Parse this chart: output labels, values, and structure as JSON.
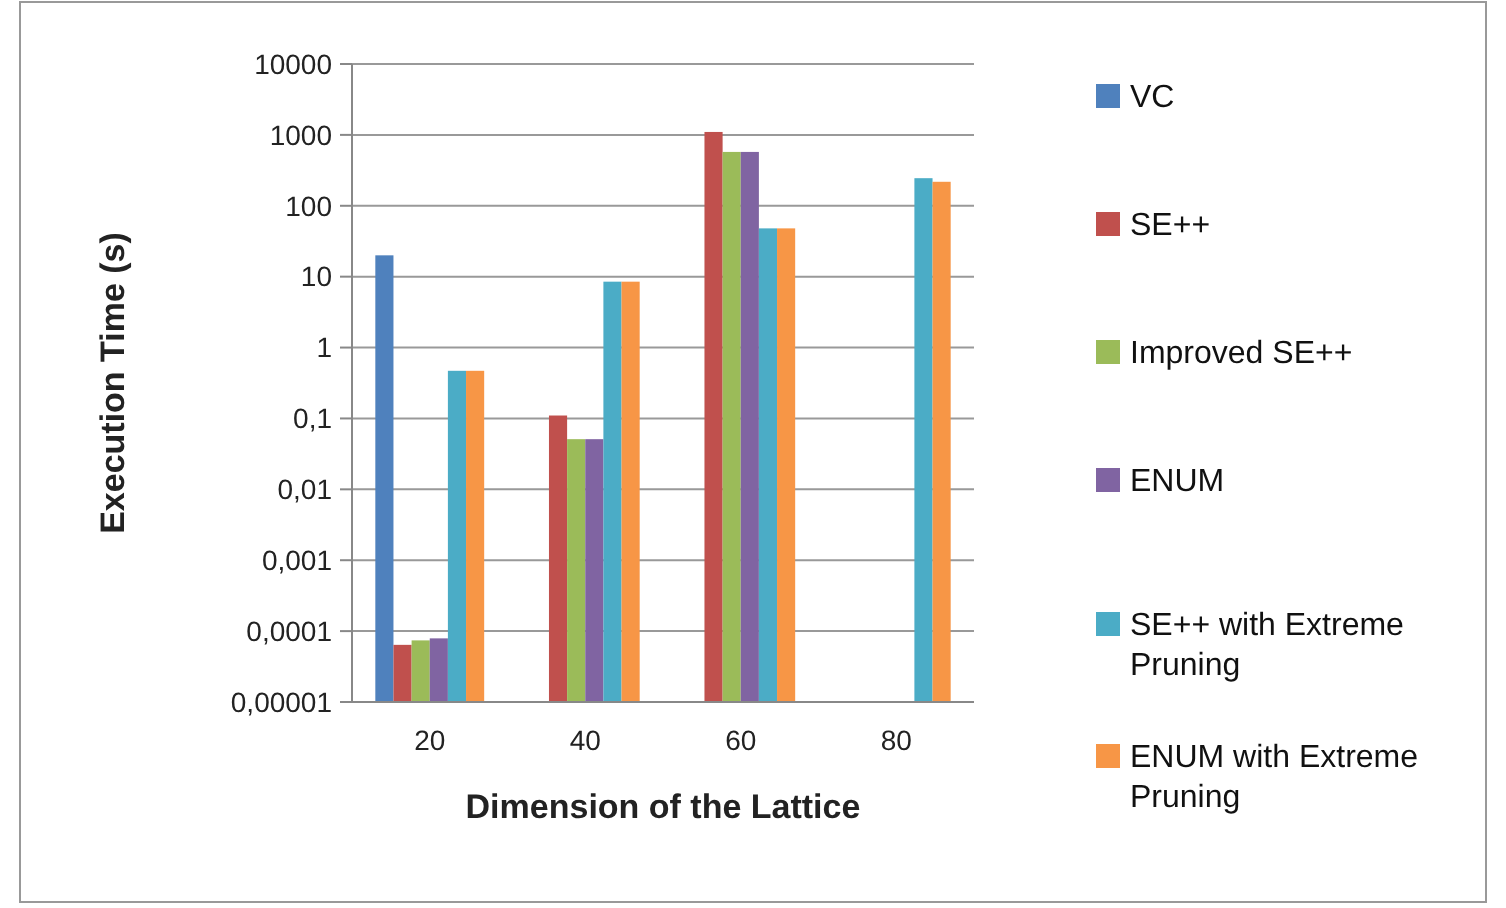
{
  "chart_data": {
    "type": "bar",
    "xlabel": "Dimension of the Lattice",
    "ylabel": "Execution Time (s)",
    "categories": [
      "20",
      "40",
      "60",
      "80"
    ],
    "series": [
      {
        "name": "VC",
        "color": "#4f81bd",
        "values": [
          20,
          null,
          null,
          null
        ]
      },
      {
        "name": "SE++",
        "color": "#c0504d",
        "values": [
          6.4e-05,
          0.11,
          1100,
          null
        ]
      },
      {
        "name": "Improved SE++",
        "color": "#9bbb59",
        "values": [
          7.4e-05,
          0.051,
          575,
          null
        ]
      },
      {
        "name": "ENUM",
        "color": "#8064a2",
        "values": [
          7.9e-05,
          0.051,
          575,
          null
        ]
      },
      {
        "name": "SE++ with Extreme Pruning",
        "color": "#4bacc6",
        "values": [
          0.47,
          8.5,
          48,
          245
        ]
      },
      {
        "name": "ENUM with Extreme Pruning",
        "color": "#f79646",
        "values": [
          0.47,
          8.5,
          48,
          218
        ]
      }
    ],
    "log": true,
    "ylim": [
      1e-05,
      10000
    ],
    "yticks": [
      {
        "value": 1e-05,
        "label": "0,00001"
      },
      {
        "value": 0.0001,
        "label": "0,0001"
      },
      {
        "value": 0.001,
        "label": "0,001"
      },
      {
        "value": 0.01,
        "label": "0,01"
      },
      {
        "value": 0.1,
        "label": "0,1"
      },
      1,
      10,
      100,
      1000,
      10000
    ],
    "grid": "y",
    "legend": "right"
  }
}
